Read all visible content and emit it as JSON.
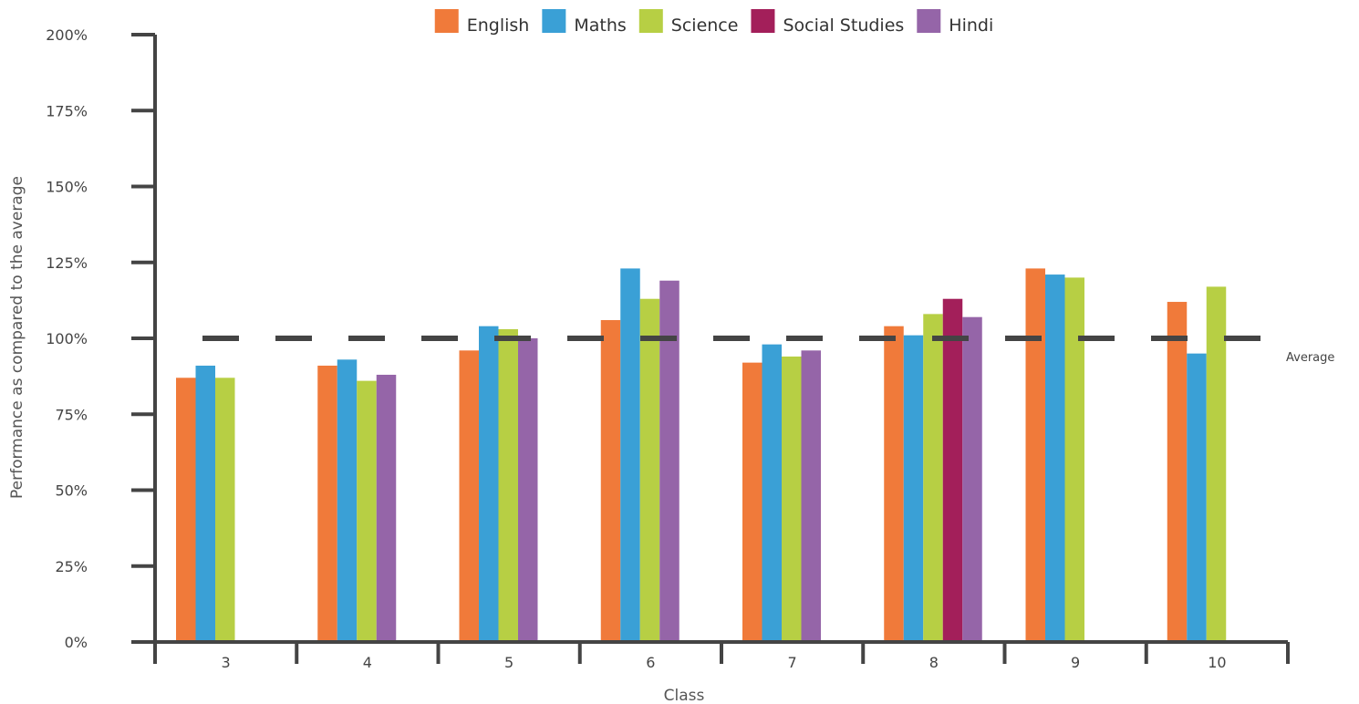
{
  "chart_data": {
    "type": "bar",
    "title": "",
    "xlabel": "Class",
    "ylabel": "Performance as compared to the  average",
    "ylim": [
      0,
      200
    ],
    "y_ticks": [
      0,
      25,
      50,
      75,
      100,
      125,
      150,
      175,
      200
    ],
    "y_tick_suffix": "%",
    "categories": [
      "3",
      "4",
      "5",
      "6",
      "7",
      "8",
      "9",
      "10"
    ],
    "series": [
      {
        "name": "English",
        "color": "#f07a3a",
        "values": [
          87,
          91,
          96,
          106,
          92,
          104,
          123,
          112
        ]
      },
      {
        "name": "Maths",
        "color": "#3aa0d6",
        "values": [
          91,
          93,
          104,
          123,
          98,
          101,
          121,
          95
        ]
      },
      {
        "name": "Science",
        "color": "#b7cf44",
        "values": [
          87,
          86,
          103,
          113,
          94,
          108,
          120,
          117
        ]
      },
      {
        "name": "Social Studies",
        "color": "#a31f5a",
        "values": [
          null,
          null,
          null,
          null,
          null,
          113,
          null,
          null
        ]
      },
      {
        "name": "Hindi",
        "color": "#9565a8",
        "values": [
          null,
          88,
          100,
          119,
          96,
          107,
          null,
          null
        ]
      }
    ],
    "reference_line": {
      "value": 100,
      "label": "Average",
      "style": "dashed",
      "color": "#444444"
    },
    "legend_position": "top",
    "grid": false
  }
}
